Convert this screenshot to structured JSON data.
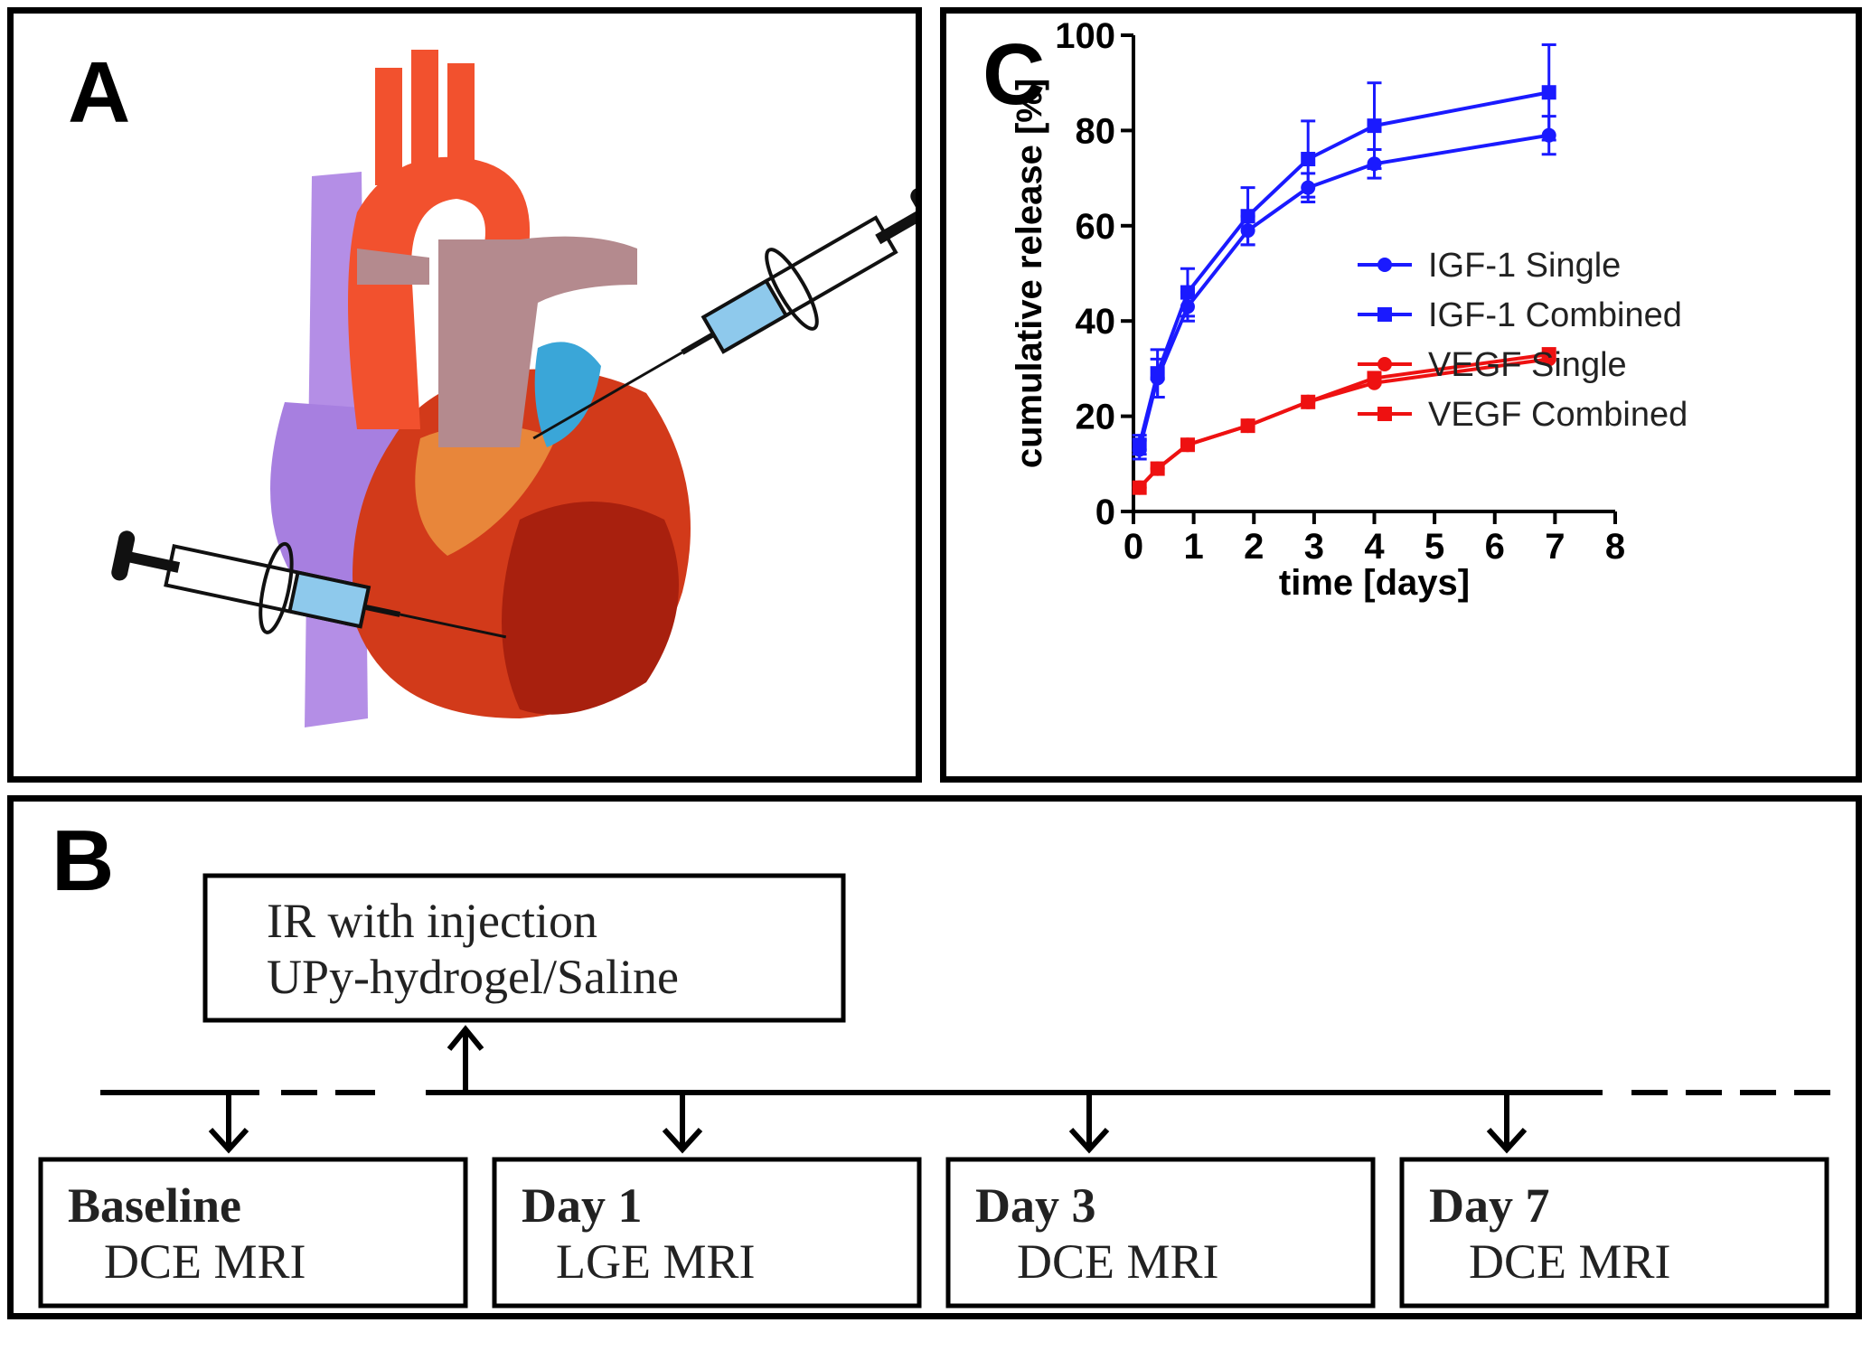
{
  "panels": {
    "a": {
      "letter": "A"
    },
    "b": {
      "letter": "B"
    },
    "c": {
      "letter": "C"
    }
  },
  "timeline": {
    "injection_box": {
      "line1": "IR with injection",
      "line2": "UPy-hydrogel/Saline"
    },
    "steps": [
      {
        "title": "Baseline",
        "subtitle": "DCE MRI"
      },
      {
        "title": "Day 1",
        "subtitle": "LGE MRI"
      },
      {
        "title": "Day 3",
        "subtitle": "DCE MRI"
      },
      {
        "title": "Day 7",
        "subtitle": "DCE MRI"
      }
    ]
  },
  "colors": {
    "igf": "#1a1aff",
    "vegf": "#ee1111"
  },
  "chart_data": {
    "type": "line",
    "title": "",
    "xlabel": "time [days]",
    "ylabel": "cumulative release [%]",
    "xlim": [
      0,
      8
    ],
    "ylim": [
      0,
      100
    ],
    "xticks": [
      0,
      1,
      2,
      3,
      4,
      5,
      6,
      7,
      8
    ],
    "yticks": [
      0,
      20,
      40,
      60,
      80,
      100
    ],
    "legend_position": "right",
    "series": [
      {
        "name": "IGF-1 Single",
        "color": "#1a1aff",
        "marker": "circle",
        "x": [
          0.1,
          0.4,
          0.9,
          1.9,
          2.9,
          4.0,
          6.9
        ],
        "y": [
          13,
          28,
          43,
          59,
          68,
          73,
          79
        ],
        "err": [
          2,
          4,
          3,
          3,
          3,
          3,
          4
        ]
      },
      {
        "name": "IGF-1 Combined",
        "color": "#1a1aff",
        "marker": "square",
        "x": [
          0.1,
          0.4,
          0.9,
          1.9,
          2.9,
          4.0,
          6.9
        ],
        "y": [
          14,
          29,
          46,
          62,
          74,
          81,
          88
        ],
        "err": [
          2,
          5,
          5,
          6,
          8,
          9,
          10
        ]
      },
      {
        "name": "VEGF Single",
        "color": "#ee1111",
        "marker": "circle",
        "x": [
          0.1,
          0.4,
          0.9,
          1.9,
          2.9,
          4.0,
          6.9
        ],
        "y": [
          5,
          9,
          14,
          18,
          23,
          27,
          32
        ],
        "err": [
          0.5,
          0.5,
          0.5,
          0.5,
          0.5,
          0.5,
          0.5
        ]
      },
      {
        "name": "VEGF Combined",
        "color": "#ee1111",
        "marker": "square",
        "x": [
          0.1,
          0.4,
          0.9,
          1.9,
          2.9,
          4.0,
          6.9
        ],
        "y": [
          5,
          9,
          14,
          18,
          23,
          28,
          33
        ],
        "err": [
          0.5,
          0.5,
          0.5,
          0.5,
          0.5,
          0.5,
          0.5
        ]
      }
    ]
  }
}
